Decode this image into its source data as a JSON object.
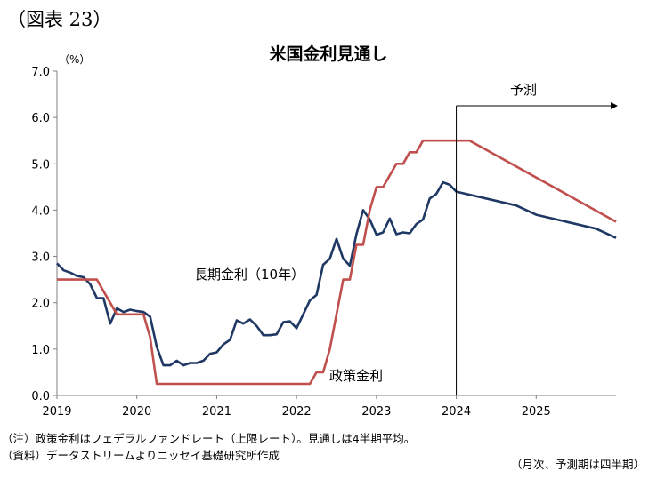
{
  "figure_label": "（図表 23）",
  "notes": {
    "note": "（注）政策金利はフェデラルファンドレート（上限レート）。見通しは4半期平均。",
    "source": "（資料）データストリームよりニッセイ基礎研究所作成",
    "frequency": "（月次、予測期は四半期）"
  },
  "colors": {
    "long_rate": "#1F3864",
    "policy_rate": "#C0504D",
    "axis": "#808080"
  },
  "chart_data": {
    "type": "line",
    "title": "米国金利見通し",
    "unit_label": "（%）",
    "ylim": [
      0,
      7
    ],
    "y_ticks": [
      "0.0",
      "1.0",
      "2.0",
      "3.0",
      "4.0",
      "5.0",
      "6.0",
      "7.0"
    ],
    "xlim": [
      "2019-01",
      "2026-01"
    ],
    "x_ticks": [
      "2019",
      "2020",
      "2021",
      "2022",
      "2023",
      "2024",
      "2025"
    ],
    "forecast_start": "2024-01",
    "forecast_label": "予測",
    "grid": false,
    "series": [
      {
        "name": "長期金利（10年）",
        "color": "#1F3864",
        "points": [
          [
            "2019-01",
            2.85
          ],
          [
            "2019-02",
            2.7
          ],
          [
            "2019-03",
            2.65
          ],
          [
            "2019-04",
            2.58
          ],
          [
            "2019-05",
            2.55
          ],
          [
            "2019-06",
            2.4
          ],
          [
            "2019-07",
            2.1
          ],
          [
            "2019-08",
            2.1
          ],
          [
            "2019-09",
            1.55
          ],
          [
            "2019-10",
            1.88
          ],
          [
            "2019-11",
            1.8
          ],
          [
            "2019-12",
            1.85
          ],
          [
            "2020-01",
            1.82
          ],
          [
            "2020-02",
            1.8
          ],
          [
            "2020-03",
            1.7
          ],
          [
            "2020-04",
            1.05
          ],
          [
            "2020-05",
            0.65
          ],
          [
            "2020-06",
            0.65
          ],
          [
            "2020-07",
            0.75
          ],
          [
            "2020-08",
            0.65
          ],
          [
            "2020-09",
            0.7
          ],
          [
            "2020-10",
            0.7
          ],
          [
            "2020-11",
            0.75
          ],
          [
            "2020-12",
            0.9
          ],
          [
            "2021-01",
            0.93
          ],
          [
            "2021-02",
            1.1
          ],
          [
            "2021-03",
            1.2
          ],
          [
            "2021-04",
            1.62
          ],
          [
            "2021-05",
            1.55
          ],
          [
            "2021-06",
            1.64
          ],
          [
            "2021-07",
            1.5
          ],
          [
            "2021-08",
            1.3
          ],
          [
            "2021-09",
            1.3
          ],
          [
            "2021-10",
            1.32
          ],
          [
            "2021-11",
            1.58
          ],
          [
            "2021-12",
            1.6
          ],
          [
            "2022-01",
            1.45
          ],
          [
            "2022-02",
            1.75
          ],
          [
            "2022-03",
            2.05
          ],
          [
            "2022-04",
            2.17
          ],
          [
            "2022-05",
            2.82
          ],
          [
            "2022-06",
            2.95
          ],
          [
            "2022-07",
            3.38
          ],
          [
            "2022-08",
            2.95
          ],
          [
            "2022-09",
            2.8
          ],
          [
            "2022-10",
            3.48
          ],
          [
            "2022-11",
            4.0
          ],
          [
            "2022-12",
            3.8
          ],
          [
            "2023-01",
            3.47
          ],
          [
            "2023-02",
            3.52
          ],
          [
            "2023-03",
            3.82
          ],
          [
            "2023-04",
            3.48
          ],
          [
            "2023-05",
            3.52
          ],
          [
            "2023-06",
            3.5
          ],
          [
            "2023-07",
            3.7
          ],
          [
            "2023-08",
            3.8
          ],
          [
            "2023-09",
            4.25
          ],
          [
            "2023-10",
            4.35
          ],
          [
            "2023-11",
            4.6
          ],
          [
            "2023-12",
            4.55
          ],
          [
            "2024-01",
            4.4
          ],
          [
            "2024-10",
            4.1
          ],
          [
            "2025-01",
            3.9
          ],
          [
            "2025-10",
            3.6
          ],
          [
            "2026-01",
            3.4
          ]
        ]
      },
      {
        "name": "政策金利",
        "color": "#C0504D",
        "points": [
          [
            "2019-01",
            2.5
          ],
          [
            "2019-07",
            2.5
          ],
          [
            "2019-08",
            2.25
          ],
          [
            "2019-09",
            2.0
          ],
          [
            "2019-10",
            1.75
          ],
          [
            "2020-02",
            1.75
          ],
          [
            "2020-03",
            1.25
          ],
          [
            "2020-04",
            0.25
          ],
          [
            "2022-03",
            0.25
          ],
          [
            "2022-04",
            0.5
          ],
          [
            "2022-05",
            0.5
          ],
          [
            "2022-06",
            1.0
          ],
          [
            "2022-07",
            1.75
          ],
          [
            "2022-08",
            2.5
          ],
          [
            "2022-09",
            2.5
          ],
          [
            "2022-10",
            3.25
          ],
          [
            "2022-11",
            3.25
          ],
          [
            "2022-12",
            4.0
          ],
          [
            "2023-01",
            4.5
          ],
          [
            "2023-02",
            4.5
          ],
          [
            "2023-03",
            4.75
          ],
          [
            "2023-04",
            5.0
          ],
          [
            "2023-05",
            5.0
          ],
          [
            "2023-06",
            5.25
          ],
          [
            "2023-07",
            5.25
          ],
          [
            "2023-08",
            5.5
          ],
          [
            "2024-03",
            5.5
          ],
          [
            "2026-01",
            3.75
          ]
        ]
      }
    ]
  }
}
